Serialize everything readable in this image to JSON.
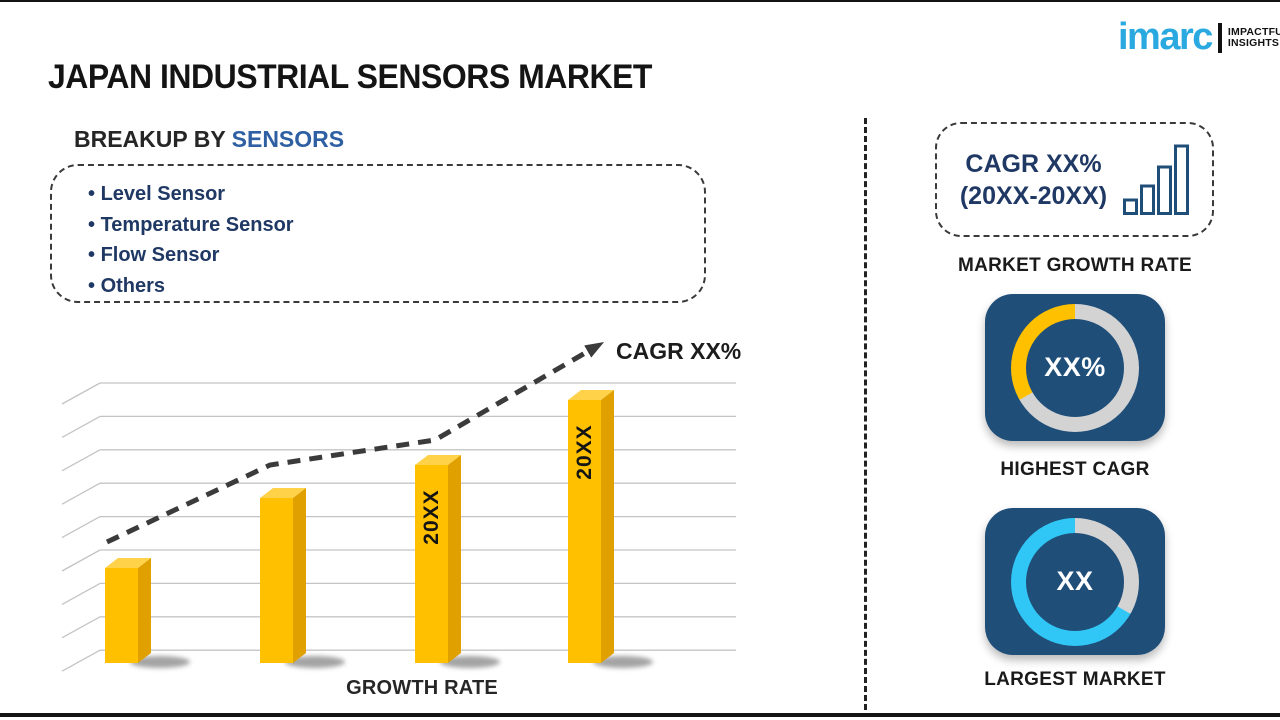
{
  "page": {
    "title": "JAPAN INDUSTRIAL SENSORS MARKET"
  },
  "logo": {
    "brand": "imarc",
    "tagline_line1": "IMPACTFUL",
    "tagline_line2": "INSIGHTS",
    "brand_color": "#2AA9E0"
  },
  "breakup": {
    "heading_prefix": "BREAKUP BY ",
    "heading_highlight": "SENSORS",
    "items": [
      "Level Sensor",
      "Temperature Sensor",
      "Flow Sensor",
      "Others"
    ]
  },
  "chart_data": {
    "type": "bar",
    "title": "",
    "categories": [
      "",
      "",
      "20XX",
      "20XX"
    ],
    "values": [
      1.0,
      1.74,
      2.08,
      2.77
    ],
    "values_note": "relative bar heights; axis unlabeled, years masked as 20XX",
    "xlabel": "GROWTH RATE",
    "ylabel": "",
    "trend_label": "CAGR XX%",
    "trend_style": "dashed ascending arrow",
    "gridline_count": 9,
    "bar_color": "#FFC000",
    "bar_top_color": "#FFD24A",
    "bar_side_color": "#DFA000",
    "gridline_color": "#c4c4c4",
    "trend_color": "#3b3b3b"
  },
  "sidebar": {
    "growth_box": {
      "line1": "CAGR XX%",
      "line2": "(20XX-20XX)",
      "icon": "ascending-bars-icon",
      "label": "MARKET GROWTH RATE"
    },
    "highest_cagr": {
      "value": "XX%",
      "label": "HIGHEST CAGR",
      "fraction": 0.333,
      "accent_color": "#FFC000",
      "ring_color": "#D3D3D3",
      "tile_color": "#1F4E79"
    },
    "largest_market": {
      "value": "XX",
      "label": "LARGEST MARKET",
      "fraction": 0.667,
      "accent_color": "#30C6F5",
      "ring_color": "#D3D3D3",
      "tile_color": "#1F4E79"
    }
  }
}
